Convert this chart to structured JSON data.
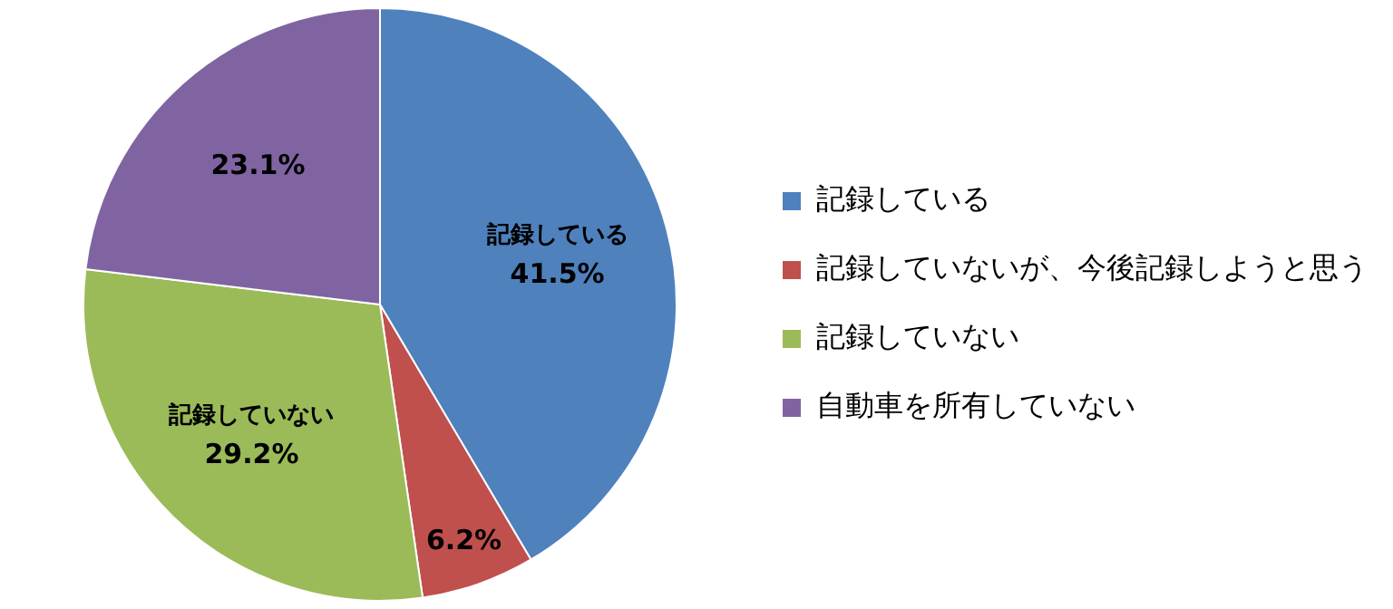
{
  "chart_data": {
    "type": "pie",
    "categories": [
      "記録している",
      "記録していないが、今後記録しようと思う",
      "記録していない",
      "自動車を所有していない"
    ],
    "values": [
      41.5,
      6.2,
      29.2,
      23.1
    ],
    "colors": [
      "#4f81bd",
      "#c0504d",
      "#9bbb59",
      "#8064a2"
    ],
    "value_labels": [
      "記録している\n41.5%",
      "6.2%",
      "記録していない\n29.2%",
      "23.1%"
    ],
    "legend": "right"
  }
}
